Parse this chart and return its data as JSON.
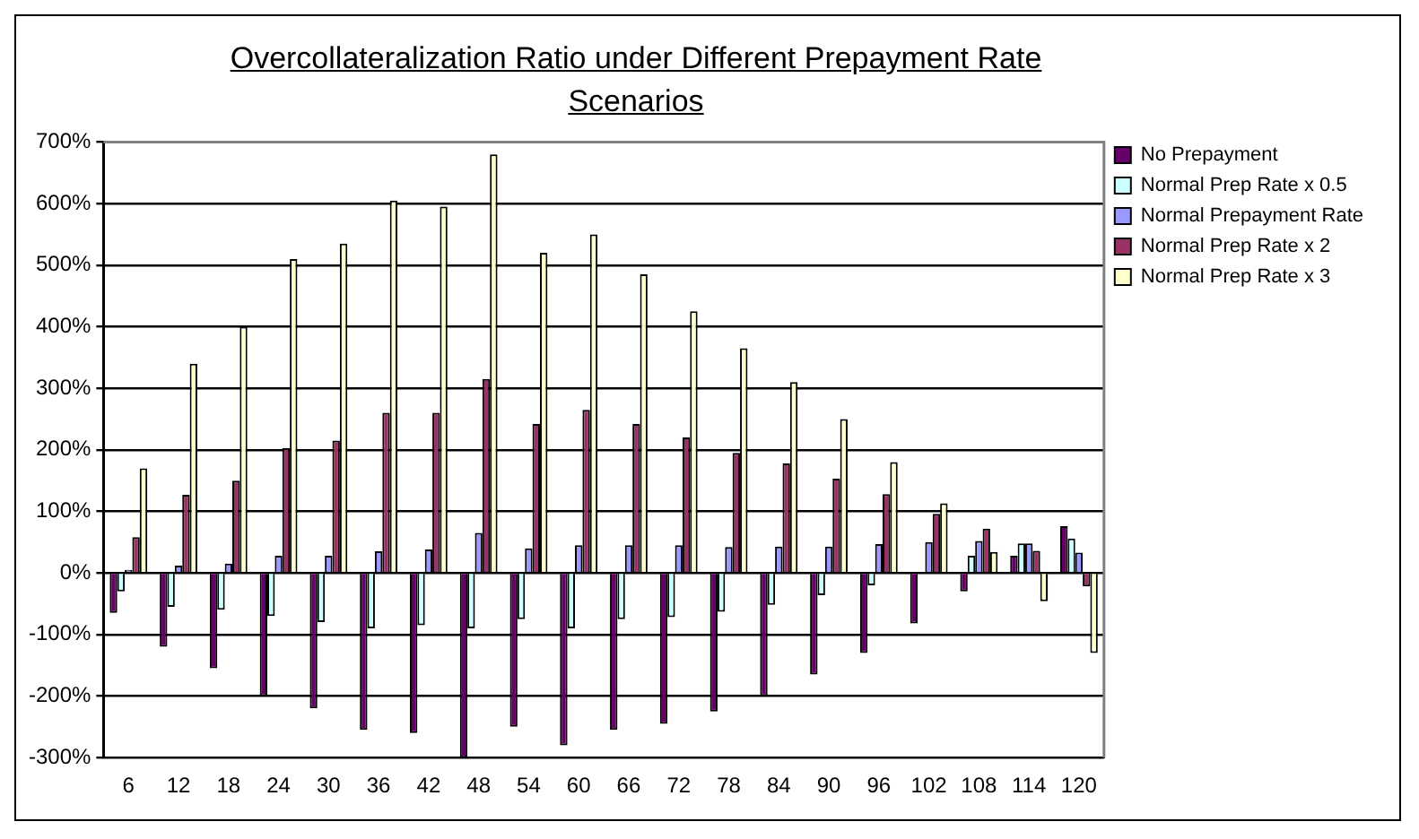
{
  "chart_data": {
    "type": "bar",
    "title": "Overcollateralization Ratio under Different Prepayment Rate Scenarios",
    "categories": [
      "6",
      "12",
      "18",
      "24",
      "30",
      "36",
      "42",
      "48",
      "54",
      "60",
      "66",
      "72",
      "78",
      "84",
      "90",
      "96",
      "102",
      "108",
      "114",
      "120"
    ],
    "series": [
      {
        "name": "No Prepayment",
        "color": "#660066",
        "values": [
          -65,
          -120,
          -155,
          -200,
          -220,
          -255,
          -260,
          -300,
          -250,
          -280,
          -255,
          -245,
          -225,
          -200,
          -165,
          -130,
          -82,
          -30,
          28,
          76
        ]
      },
      {
        "name": "Normal Prep Rate x 0.5",
        "color": "#ccffff",
        "values": [
          -30,
          -55,
          -60,
          -70,
          -80,
          -90,
          -85,
          -90,
          -75,
          -90,
          -75,
          -72,
          -63,
          -52,
          -36,
          -20,
          null,
          28,
          48,
          56
        ]
      },
      {
        "name": "Normal Prepayment Rate",
        "color": "#9999ff",
        "values": [
          5,
          12,
          15,
          28,
          28,
          35,
          38,
          65,
          40,
          45,
          45,
          45,
          42,
          43,
          43,
          47,
          50,
          52,
          48,
          33
        ]
      },
      {
        "name": "Normal Prep Rate x 2",
        "color": "#993366",
        "values": [
          58,
          127,
          150,
          203,
          215,
          260,
          260,
          315,
          242,
          265,
          242,
          220,
          195,
          178,
          153,
          128,
          96,
          72,
          36,
          -22
        ]
      },
      {
        "name": "Normal Prep Rate x 3",
        "color": "#ffffcc",
        "values": [
          170,
          340,
          400,
          510,
          535,
          605,
          595,
          680,
          520,
          550,
          485,
          425,
          365,
          310,
          250,
          180,
          113,
          34,
          -46,
          -130
        ]
      }
    ],
    "ylim": [
      -300,
      700
    ],
    "yticks": [
      {
        "value": -300,
        "label": "-300%"
      },
      {
        "value": -200,
        "label": "-200%"
      },
      {
        "value": -100,
        "label": "-100%"
      },
      {
        "value": 0,
        "label": "0%"
      },
      {
        "value": 100,
        "label": "100%"
      },
      {
        "value": 200,
        "label": "200%"
      },
      {
        "value": 300,
        "label": "300%"
      },
      {
        "value": 400,
        "label": "400%"
      },
      {
        "value": 500,
        "label": "500%"
      },
      {
        "value": 600,
        "label": "600%"
      },
      {
        "value": 700,
        "label": "700%"
      }
    ],
    "grid": "y",
    "legend": "top right"
  }
}
